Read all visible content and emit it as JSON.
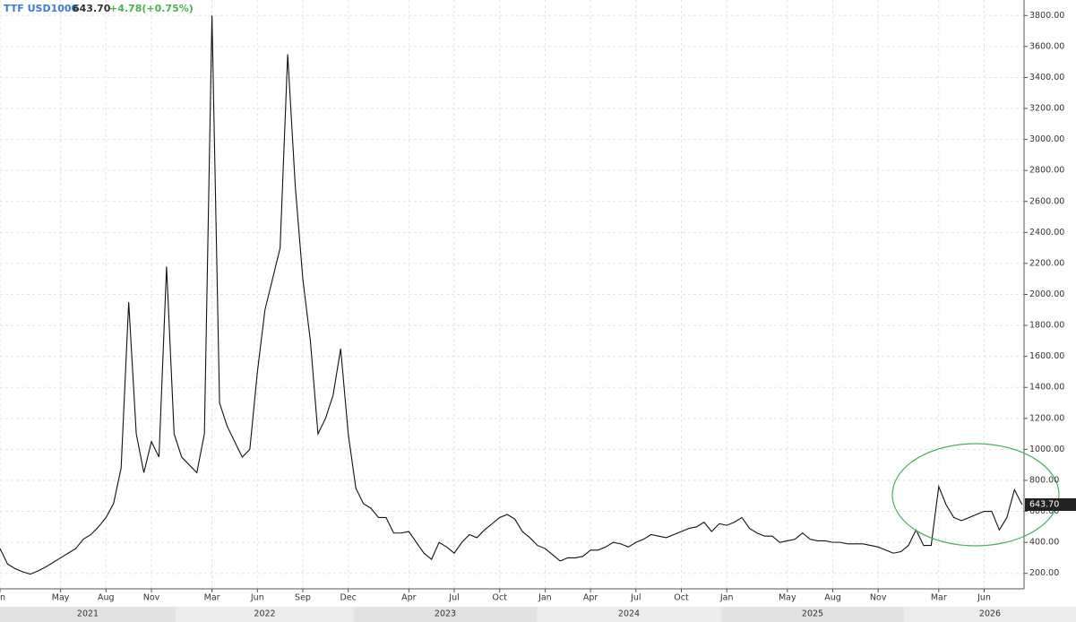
{
  "chart_data": {
    "type": "line",
    "title": "TTF USD1000",
    "last_price": "643.70",
    "change": "+4.78(+0.75%)",
    "categories": [
      "n",
      null,
      null,
      null,
      null,
      null,
      null,
      null,
      "May",
      null,
      null,
      null,
      null,
      null,
      "Aug",
      null,
      null,
      null,
      null,
      null,
      "Nov",
      null,
      null,
      null,
      null,
      null,
      null,
      null,
      "Mar",
      null,
      null,
      null,
      null,
      null,
      "Jun",
      null,
      null,
      null,
      null,
      null,
      "Sep",
      null,
      null,
      null,
      null,
      null,
      "Dec",
      null,
      null,
      null,
      null,
      null,
      null,
      null,
      "Apr",
      null,
      null,
      null,
      null,
      null,
      "Jul",
      null,
      null,
      null,
      null,
      null,
      "Oct",
      null,
      null,
      null,
      null,
      null,
      "Jan",
      null,
      null,
      null,
      null,
      null,
      "Apr",
      null,
      null,
      null,
      null,
      null,
      "Jul",
      null,
      null,
      null,
      null,
      null,
      "Oct",
      null,
      null,
      null,
      null,
      null,
      "Jan",
      null,
      null,
      null,
      null,
      null,
      null,
      null,
      "May",
      null,
      null,
      null,
      null,
      null,
      "Aug",
      null,
      null,
      null,
      null,
      null,
      "Nov",
      null,
      null,
      null,
      null,
      null,
      null,
      null,
      "Mar",
      null,
      null,
      null,
      null,
      null,
      "Jun",
      null,
      null,
      null,
      null,
      null
    ],
    "years": [
      "2021",
      "2022",
      "2023",
      "2024",
      "2025",
      "2026"
    ],
    "color": "#111111",
    "values": [
      360,
      260,
      230,
      210,
      195,
      215,
      240,
      270,
      300,
      330,
      360,
      420,
      450,
      500,
      560,
      650,
      880,
      1950,
      1100,
      850,
      1050,
      950,
      2180,
      1100,
      950,
      900,
      850,
      1100,
      3800,
      1300,
      1150,
      1050,
      950,
      1000,
      1500,
      1900,
      2100,
      2300,
      3550,
      2700,
      2100,
      1700,
      1100,
      1200,
      1350,
      1650,
      1100,
      750,
      650,
      620,
      560,
      560,
      460,
      460,
      470,
      400,
      330,
      290,
      400,
      370,
      330,
      400,
      450,
      430,
      480,
      520,
      560,
      580,
      550,
      470,
      430,
      380,
      360,
      320,
      280,
      300,
      300,
      310,
      350,
      350,
      370,
      400,
      390,
      370,
      400,
      420,
      450,
      440,
      430,
      450,
      470,
      490,
      500,
      530,
      470,
      520,
      510,
      530,
      560,
      490,
      460,
      440,
      440,
      400,
      410,
      420,
      460,
      420,
      410,
      410,
      400,
      400,
      390,
      390,
      390,
      380,
      370,
      350,
      330,
      340,
      380,
      480,
      380,
      380,
      760,
      640,
      560,
      540,
      560,
      580,
      600,
      600,
      480,
      560,
      740,
      643.7
    ],
    "ylim": [
      100,
      3900
    ],
    "yticks": [
      {
        "value": 200,
        "label": "200.00"
      },
      {
        "value": 400,
        "label": "400.00"
      },
      {
        "value": 600,
        "label": "600.00"
      },
      {
        "value": 800,
        "label": "800.00"
      },
      {
        "value": 1000,
        "label": "1000.00"
      },
      {
        "value": 1200,
        "label": "1200.00"
      },
      {
        "value": 1400,
        "label": "1400.00"
      },
      {
        "value": 1600,
        "label": "1600.00"
      },
      {
        "value": 1800,
        "label": "1800.00"
      },
      {
        "value": 2000,
        "label": "2000.00"
      },
      {
        "value": 2200,
        "label": "2200.00"
      },
      {
        "value": 2400,
        "label": "2400.00"
      },
      {
        "value": 2600,
        "label": "2600.00"
      },
      {
        "value": 2800,
        "label": "2800.00"
      },
      {
        "value": 3000,
        "label": "3000.00"
      },
      {
        "value": 3200,
        "label": "3200.00"
      },
      {
        "value": 3400,
        "label": "3400.00"
      },
      {
        "value": 3600,
        "label": "3600.00"
      },
      {
        "value": 3800,
        "label": "3800.00"
      }
    ],
    "grid": true
  }
}
